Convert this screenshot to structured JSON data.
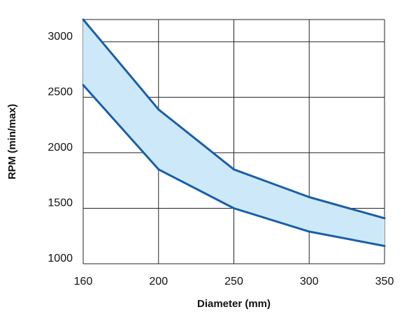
{
  "chart_data": {
    "type": "area",
    "title": "",
    "xlabel": "Diameter (mm)",
    "ylabel": "RPM (min/max)",
    "x": [
      160,
      200,
      250,
      300,
      350
    ],
    "x_ticks": [
      160,
      200,
      250,
      300,
      350
    ],
    "y_ticks": [
      1000,
      1500,
      2000,
      2500,
      3000
    ],
    "ylim": [
      1000,
      3200
    ],
    "grid": true,
    "series": [
      {
        "values": [
          3200,
          2390,
          1850,
          1600,
          1410
        ]
      },
      {
        "values": [
          2610,
          1850,
          1500,
          1290,
          1160
        ]
      }
    ],
    "band_fill": "#cde9f9",
    "line_color": "#1a5ea8",
    "grid_color": "#222222"
  }
}
